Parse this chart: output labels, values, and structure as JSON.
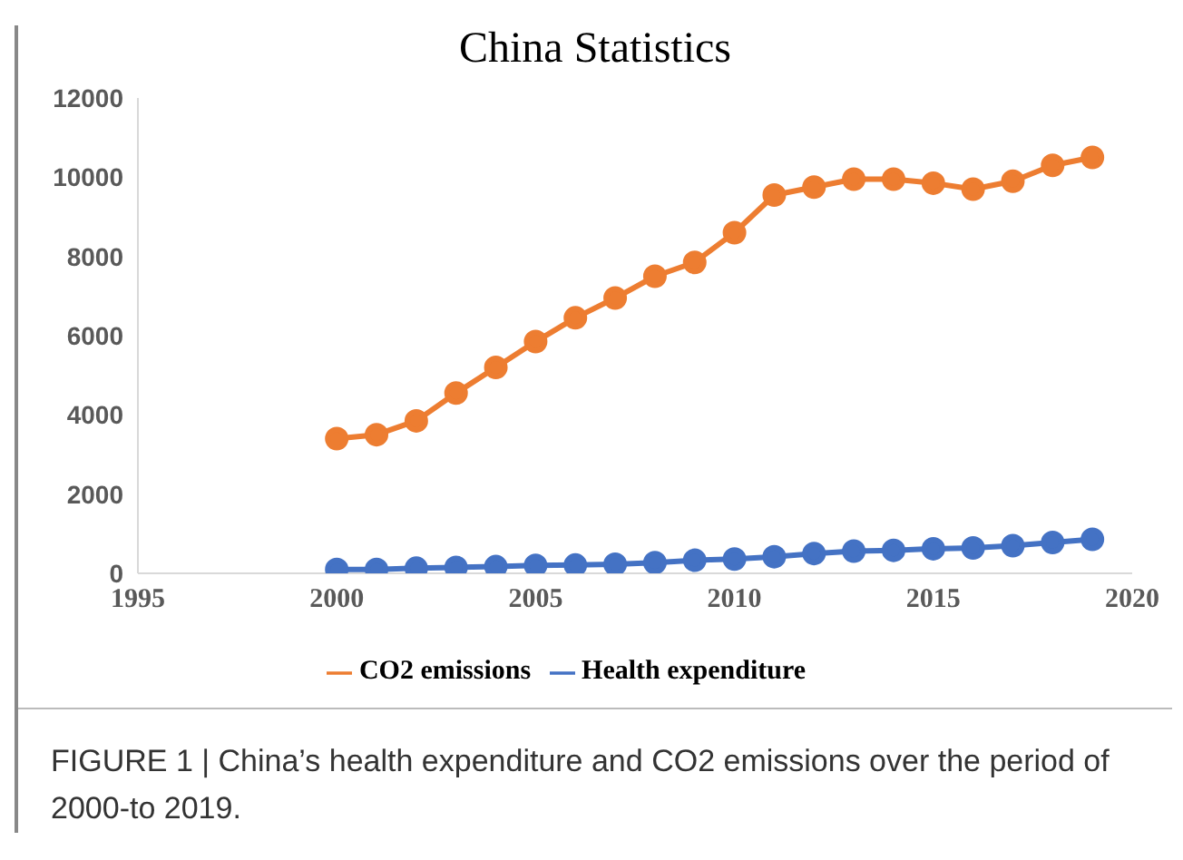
{
  "chart_data": {
    "type": "line",
    "title": "China Statistics",
    "x": [
      2000,
      2001,
      2002,
      2003,
      2004,
      2005,
      2006,
      2007,
      2008,
      2009,
      2010,
      2011,
      2012,
      2013,
      2014,
      2015,
      2016,
      2017,
      2018,
      2019
    ],
    "series": [
      {
        "name": "Health expenditure",
        "color": "#4472c4",
        "values": [
          100,
          100,
          130,
          150,
          170,
          200,
          210,
          230,
          270,
          330,
          360,
          420,
          500,
          560,
          580,
          620,
          640,
          700,
          780,
          860
        ]
      },
      {
        "name": "CO2 emissions",
        "color": "#ed7d31",
        "values": [
          3400,
          3500,
          3850,
          4550,
          5200,
          5850,
          6450,
          6950,
          7500,
          7850,
          8600,
          9550,
          9750,
          9950,
          9950,
          9850,
          9700,
          9900,
          10300,
          10500
        ]
      }
    ],
    "xlim": [
      1995,
      2020
    ],
    "xticks": [
      1995,
      2000,
      2005,
      2010,
      2015,
      2020
    ],
    "ylim": [
      0,
      12000
    ],
    "yticks": [
      0,
      2000,
      4000,
      6000,
      8000,
      10000,
      12000
    ],
    "grid": false,
    "legend": "bottom",
    "marker": "circle",
    "line_style": "solid",
    "annotations": [
      "FIGURE 1 | China’s health expenditure and CO2 emissions over the period of 2000-to 2019."
    ]
  }
}
